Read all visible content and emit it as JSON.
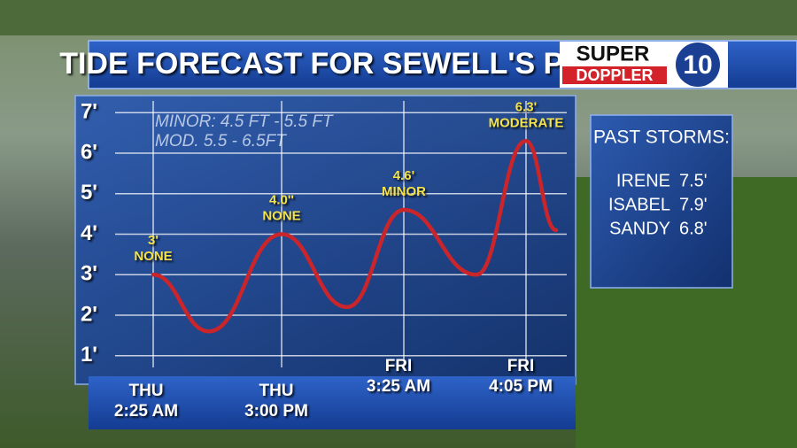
{
  "chart_data": {
    "type": "line",
    "title": "TIDE FORECAST FOR SEWELL'S PT.",
    "annotations": [
      "MINOR: 4.5 FT - 5.5 FT",
      "MOD. 5.5 - 6.5FT"
    ],
    "category_days": [
      "THU",
      null,
      "THU",
      null,
      "FRI",
      null,
      "FRI",
      null
    ],
    "categories": [
      "2:25 AM",
      null,
      "3:00 PM",
      null,
      "3:25 AM",
      null,
      "4:05 PM",
      null
    ],
    "values": [
      3,
      1.6,
      4.0,
      2.2,
      4.6,
      3.0,
      6.3,
      4.1
    ],
    "value_labels": [
      "3'",
      null,
      "4.0''",
      null,
      "4.6'",
      null,
      "6.3'",
      null
    ],
    "stage_labels": [
      "NONE",
      null,
      "NONE",
      null,
      "MINOR",
      null,
      "MODERATE",
      null
    ],
    "color": "#c9252b",
    "ylim": [
      0.6,
      7.4
    ],
    "yticks": [
      {
        "value": 1,
        "label": "1'"
      },
      {
        "value": 2,
        "label": "2'"
      },
      {
        "value": 3,
        "label": "3'"
      },
      {
        "value": 4,
        "label": "4'"
      },
      {
        "value": 5,
        "label": "5'"
      },
      {
        "value": 6,
        "label": "6'"
      },
      {
        "value": 7,
        "label": "7'"
      }
    ],
    "grid": true
  },
  "logo": {
    "line1": "SUPER",
    "line2": "DOPPLER",
    "number": "10"
  },
  "sidebar": {
    "title": "PAST STORMS:",
    "rows": [
      [
        "IRENE",
        "7.5'"
      ],
      [
        "ISABEL",
        "7.9'"
      ],
      [
        "SANDY",
        "6.8'"
      ]
    ]
  }
}
